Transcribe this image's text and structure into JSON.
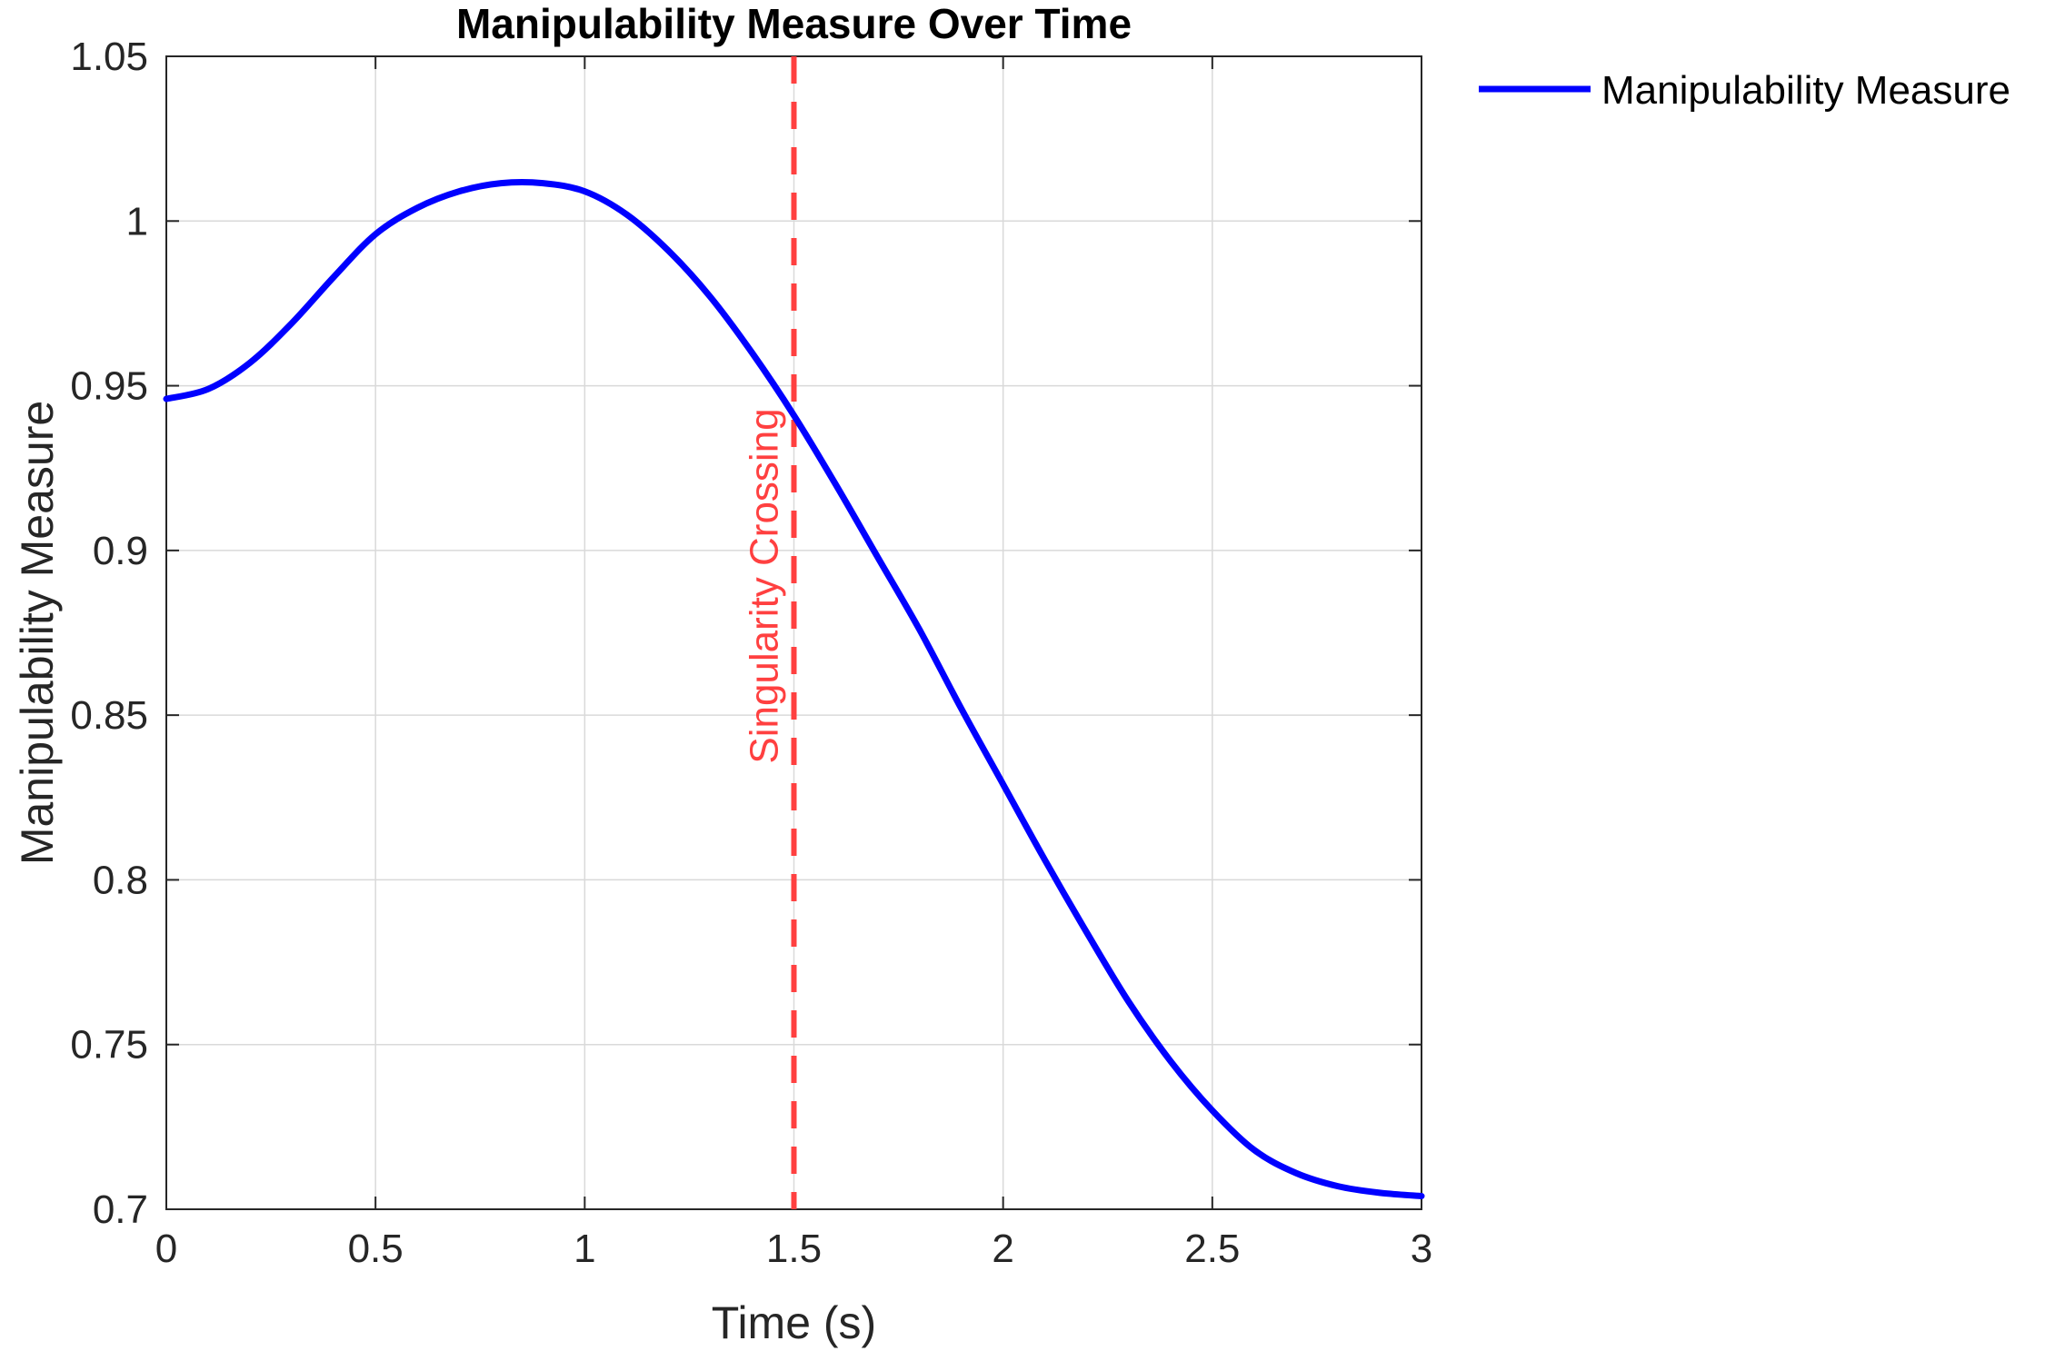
{
  "chart_data": {
    "type": "line",
    "title": "Manipulability Measure Over Time",
    "xlabel": "Time (s)",
    "ylabel": "Manipulability Measure",
    "xlim": [
      0,
      3
    ],
    "ylim": [
      0.7,
      1.05
    ],
    "xticks": [
      0,
      0.5,
      1,
      1.5,
      2,
      2.5,
      3
    ],
    "xtick_labels": [
      "0",
      "0.5",
      "1",
      "1.5",
      "2",
      "2.5",
      "3"
    ],
    "yticks": [
      0.7,
      0.75,
      0.8,
      0.85,
      0.9,
      0.95,
      1,
      1.05
    ],
    "ytick_labels": [
      "0.7",
      "0.75",
      "0.8",
      "0.85",
      "0.9",
      "0.95",
      "1",
      "1.05"
    ],
    "grid": true,
    "box": true,
    "legend_position": "outside-top-right",
    "series": [
      {
        "name": "Manipulability Measure",
        "color": "#0000ff",
        "x": [
          0,
          0.1,
          0.2,
          0.3,
          0.4,
          0.5,
          0.6,
          0.7,
          0.8,
          0.9,
          1.0,
          1.1,
          1.2,
          1.3,
          1.4,
          1.5,
          1.6,
          1.7,
          1.8,
          1.9,
          2.0,
          2.1,
          2.2,
          2.3,
          2.4,
          2.5,
          2.6,
          2.7,
          2.8,
          2.9,
          3.0
        ],
        "y": [
          0.946,
          0.949,
          0.957,
          0.969,
          0.983,
          0.996,
          1.004,
          1.009,
          1.0115,
          1.0115,
          1.009,
          1.002,
          0.991,
          0.977,
          0.96,
          0.941,
          0.92,
          0.898,
          0.876,
          0.852,
          0.829,
          0.806,
          0.784,
          0.763,
          0.745,
          0.73,
          0.718,
          0.711,
          0.707,
          0.705,
          0.704
        ]
      }
    ],
    "annotations": [
      {
        "type": "vline",
        "x": 1.5,
        "color": "#ff4040",
        "style": "dashed",
        "label": "Singularity Crossing"
      }
    ]
  }
}
